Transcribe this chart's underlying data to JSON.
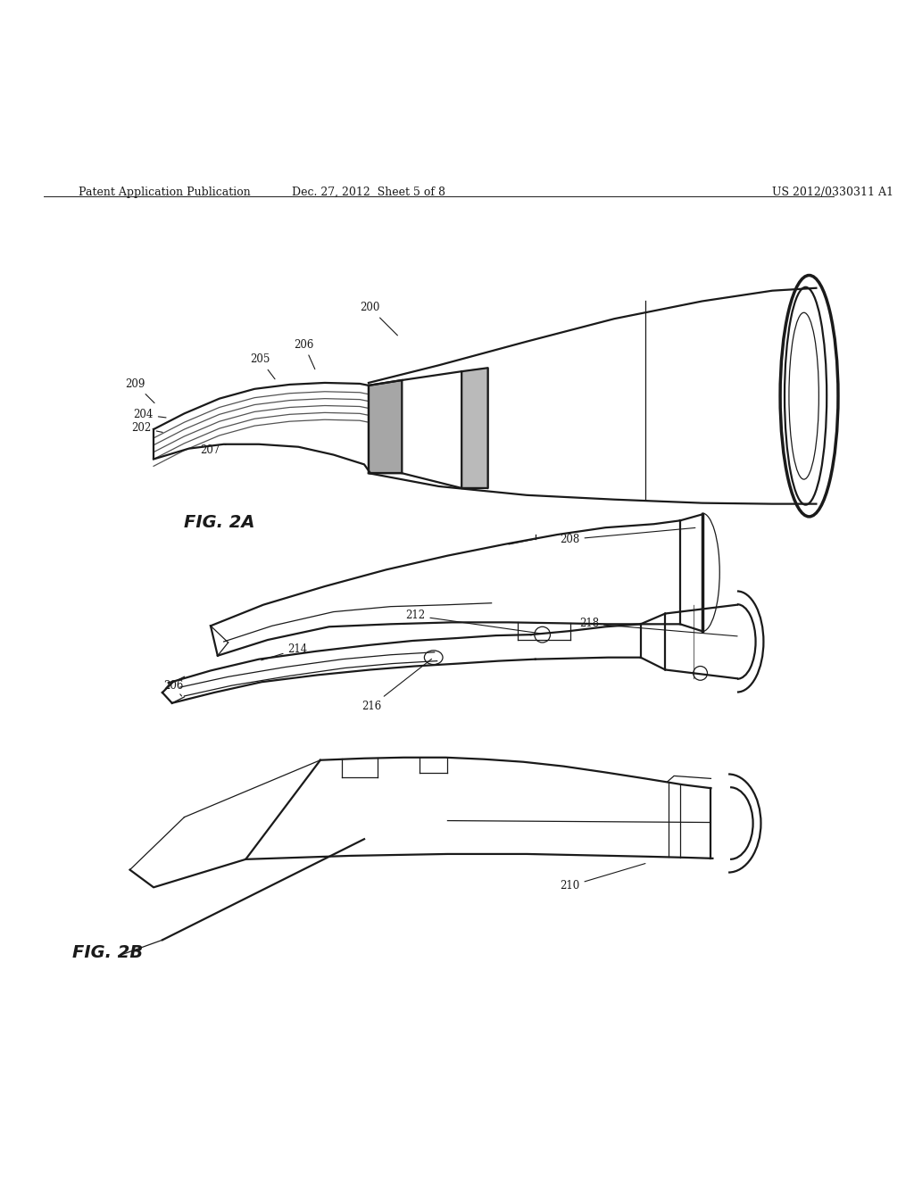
{
  "bg_color": "#ffffff",
  "line_color": "#1a1a1a",
  "header_left": "Patent Application Publication",
  "header_center": "Dec. 27, 2012  Sheet 5 of 8",
  "header_right": "US 2012/0330311 A1",
  "fig2a_label": "FIG. 2A",
  "fig2b_label": "FIG. 2B"
}
